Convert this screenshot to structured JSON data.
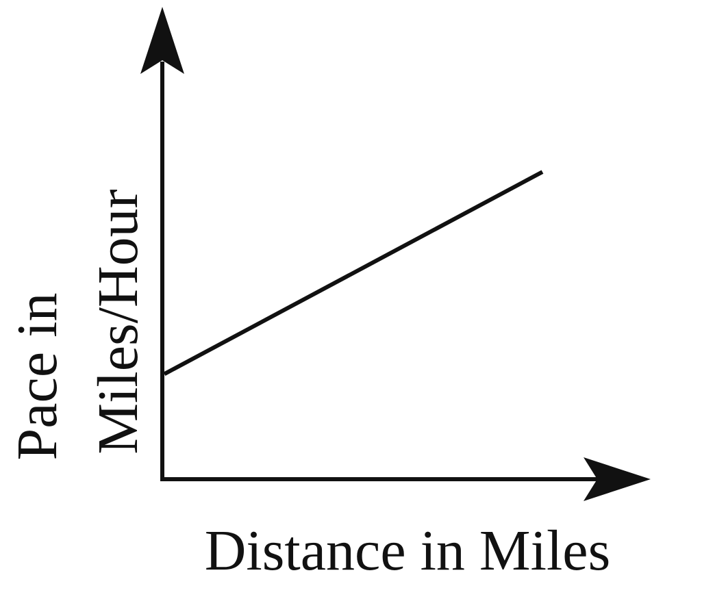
{
  "colors": {
    "ink": "#111111",
    "background": "#ffffff"
  },
  "chart_data": {
    "type": "line",
    "title": "",
    "xlabel": "Distance in Miles",
    "ylabel_lines": [
      "Pace in",
      "Miles/Hour"
    ],
    "xlim": [
      0,
      10
    ],
    "ylim": [
      0,
      10
    ],
    "grid": false,
    "axis_arrows": true,
    "series": [
      {
        "x": [
          0,
          10
        ],
        "y": [
          2.5,
          7.3
        ]
      }
    ]
  }
}
